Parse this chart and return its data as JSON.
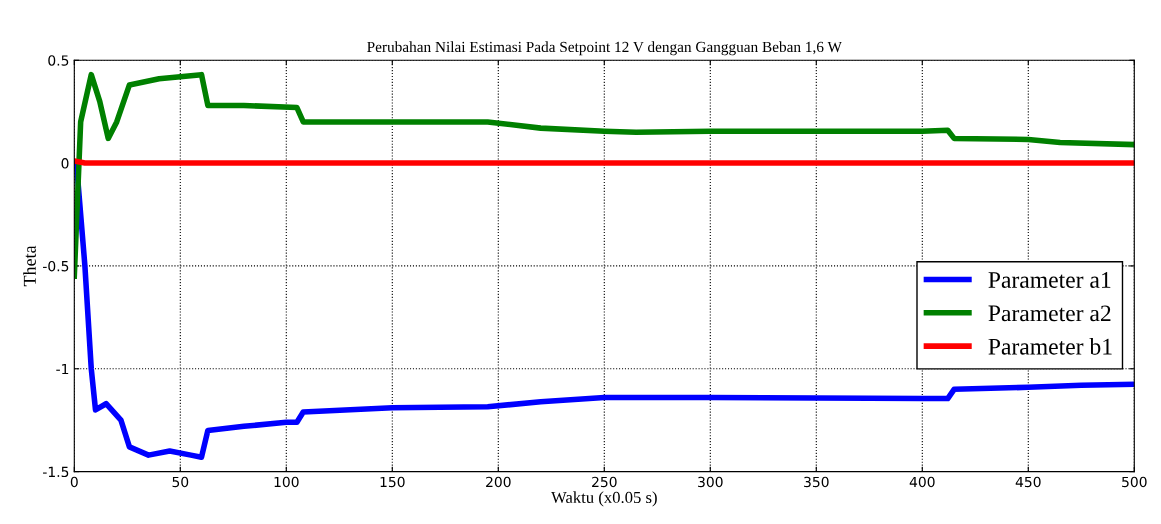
{
  "chart_data": {
    "type": "line",
    "title": "Perubahan Nilai Estimasi Pada Setpoint 12 V dengan Gangguan Beban 1,6 W",
    "xlabel": "Waktu (x0.05 s)",
    "ylabel": "Theta",
    "xlim": [
      0,
      500
    ],
    "xticks": [
      0,
      50,
      100,
      150,
      200,
      250,
      300,
      350,
      400,
      450,
      500
    ],
    "ylim": [
      -1.5,
      0.5
    ],
    "yticks": [
      -1.5,
      -1,
      -0.5,
      0,
      0.5
    ],
    "grid": true,
    "legend": "right",
    "line_style": "solid",
    "marker": "none",
    "series": [
      {
        "name": "Parameter a1",
        "color": "#0000ff",
        "x": [
          0,
          1,
          5,
          8,
          10,
          15,
          22,
          26,
          35,
          45,
          55,
          60,
          63,
          80,
          100,
          105,
          108,
          150,
          195,
          220,
          250,
          300,
          400,
          412,
          415,
          450,
          475,
          500
        ],
        "values": [
          0,
          0,
          -0.5,
          -1.0,
          -1.2,
          -1.17,
          -1.25,
          -1.38,
          -1.42,
          -1.4,
          -1.42,
          -1.43,
          -1.3,
          -1.28,
          -1.26,
          -1.26,
          -1.21,
          -1.19,
          -1.185,
          -1.16,
          -1.14,
          -1.14,
          -1.145,
          -1.145,
          -1.1,
          -1.09,
          -1.08,
          -1.075
        ]
      },
      {
        "name": "Parameter a2",
        "color": "#008000",
        "x": [
          0,
          3,
          8,
          12,
          16,
          20,
          26,
          40,
          50,
          60,
          63,
          80,
          105,
          108,
          150,
          195,
          220,
          250,
          265,
          300,
          400,
          412,
          415,
          450,
          465,
          500
        ],
        "values": [
          -0.55,
          0.2,
          0.43,
          0.3,
          0.12,
          0.2,
          0.38,
          0.41,
          0.42,
          0.43,
          0.28,
          0.28,
          0.27,
          0.2,
          0.2,
          0.2,
          0.17,
          0.155,
          0.15,
          0.155,
          0.155,
          0.16,
          0.12,
          0.115,
          0.1,
          0.09
        ]
      },
      {
        "name": "Parameter b1",
        "color": "#ff0000",
        "x": [
          0,
          5,
          500
        ],
        "values": [
          0.01,
          0,
          0
        ]
      }
    ]
  }
}
